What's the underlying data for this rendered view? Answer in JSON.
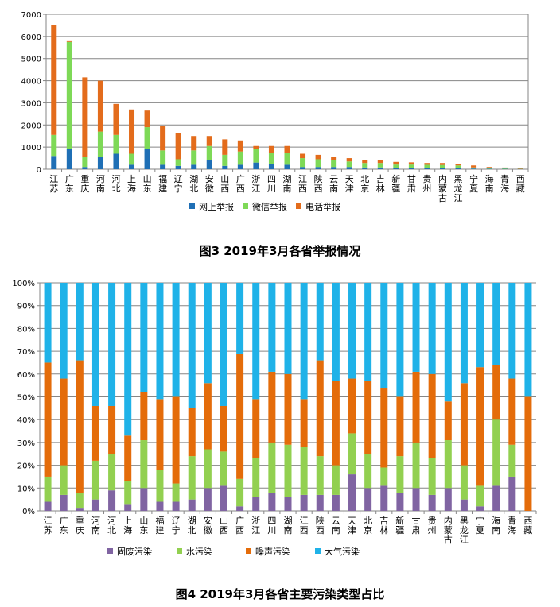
{
  "chart_data": [
    {
      "type": "bar",
      "stacked": true,
      "title": "图3 2019年3月各省举报情况",
      "categories": [
        "江苏",
        "广东",
        "重庆",
        "河南",
        "河北",
        "上海",
        "山东",
        "福建",
        "辽宁",
        "湖北",
        "安徽",
        "山西",
        "广西",
        "浙江",
        "四川",
        "湖南",
        "江西",
        "陕西",
        "云南",
        "天津",
        "北京",
        "吉林",
        "新疆",
        "甘肃",
        "贵州",
        "内蒙古",
        "黑龙江",
        "宁夏",
        "海南",
        "青海",
        "西藏"
      ],
      "series": [
        {
          "name": "网上举报",
          "color": "#1f6fb5",
          "values": [
            600,
            900,
            100,
            550,
            700,
            200,
            900,
            200,
            150,
            200,
            400,
            150,
            200,
            300,
            250,
            200,
            100,
            100,
            100,
            100,
            80,
            80,
            60,
            60,
            50,
            60,
            50,
            30,
            20,
            15,
            10
          ]
        },
        {
          "name": "微信举报",
          "color": "#7ed957",
          "values": [
            950,
            4850,
            450,
            1150,
            850,
            500,
            1000,
            650,
            300,
            650,
            650,
            500,
            600,
            600,
            500,
            550,
            400,
            350,
            300,
            250,
            200,
            200,
            150,
            150,
            150,
            130,
            120,
            50,
            30,
            20,
            10
          ]
        },
        {
          "name": "电话举报",
          "color": "#e36c1c",
          "values": [
            4950,
            70,
            3600,
            2300,
            1400,
            2000,
            750,
            1100,
            1200,
            650,
            450,
            700,
            500,
            150,
            300,
            300,
            200,
            200,
            150,
            150,
            150,
            120,
            120,
            100,
            80,
            90,
            80,
            90,
            50,
            40,
            30
          ]
        }
      ],
      "yticks": [
        "0",
        "1000",
        "2000",
        "3000",
        "4000",
        "5000",
        "6000",
        "7000"
      ],
      "ylim": [
        0,
        7000
      ],
      "grid": true,
      "legend": "bottom"
    },
    {
      "type": "bar",
      "stacked": true,
      "percent": true,
      "title": "图4 2019年3月各省主要污染类型占比",
      "categories": [
        "江苏",
        "广东",
        "重庆",
        "河南",
        "河北",
        "上海",
        "山东",
        "福建",
        "辽宁",
        "湖北",
        "安徽",
        "山西",
        "广西",
        "浙江",
        "四川",
        "湖南",
        "江西",
        "陕西",
        "云南",
        "天津",
        "北京",
        "吉林",
        "新疆",
        "甘肃",
        "贵州",
        "内蒙古",
        "黑龙江",
        "宁夏",
        "海南",
        "青海",
        "西藏"
      ],
      "series": [
        {
          "name": "固废污染",
          "color": "#8064a2",
          "values": [
            4,
            7,
            1,
            5,
            9,
            3,
            10,
            4,
            4,
            5,
            10,
            11,
            2,
            6,
            8,
            6,
            7,
            7,
            7,
            16,
            10,
            11,
            8,
            10,
            7,
            10,
            5,
            2,
            11,
            15,
            0
          ]
        },
        {
          "name": "水污染",
          "color": "#92d050",
          "values": [
            11,
            13,
            7,
            17,
            16,
            10,
            21,
            14,
            8,
            19,
            17,
            15,
            12,
            17,
            22,
            23,
            21,
            17,
            13,
            18,
            15,
            8,
            16,
            20,
            16,
            21,
            15,
            9,
            29,
            14,
            0
          ]
        },
        {
          "name": "噪声污染",
          "color": "#e46c0a",
          "values": [
            50,
            38,
            58,
            24,
            21,
            20,
            21,
            31,
            38,
            21,
            29,
            20,
            55,
            26,
            31,
            31,
            21,
            42,
            37,
            24,
            32,
            35,
            26,
            31,
            37,
            17,
            36,
            52,
            24,
            29,
            50
          ]
        },
        {
          "name": "大气污染",
          "color": "#1fb2e8",
          "values": [
            35,
            42,
            34,
            54,
            54,
            67,
            48,
            51,
            50,
            55,
            44,
            54,
            31,
            51,
            39,
            40,
            51,
            34,
            43,
            42,
            43,
            46,
            50,
            39,
            40,
            52,
            44,
            37,
            36,
            42,
            50
          ]
        }
      ],
      "yticks": [
        "0%",
        "10%",
        "20%",
        "30%",
        "40%",
        "50%",
        "60%",
        "70%",
        "80%",
        "90%",
        "100%"
      ],
      "ylim": [
        0,
        100
      ],
      "grid": true,
      "legend": "bottom"
    }
  ]
}
